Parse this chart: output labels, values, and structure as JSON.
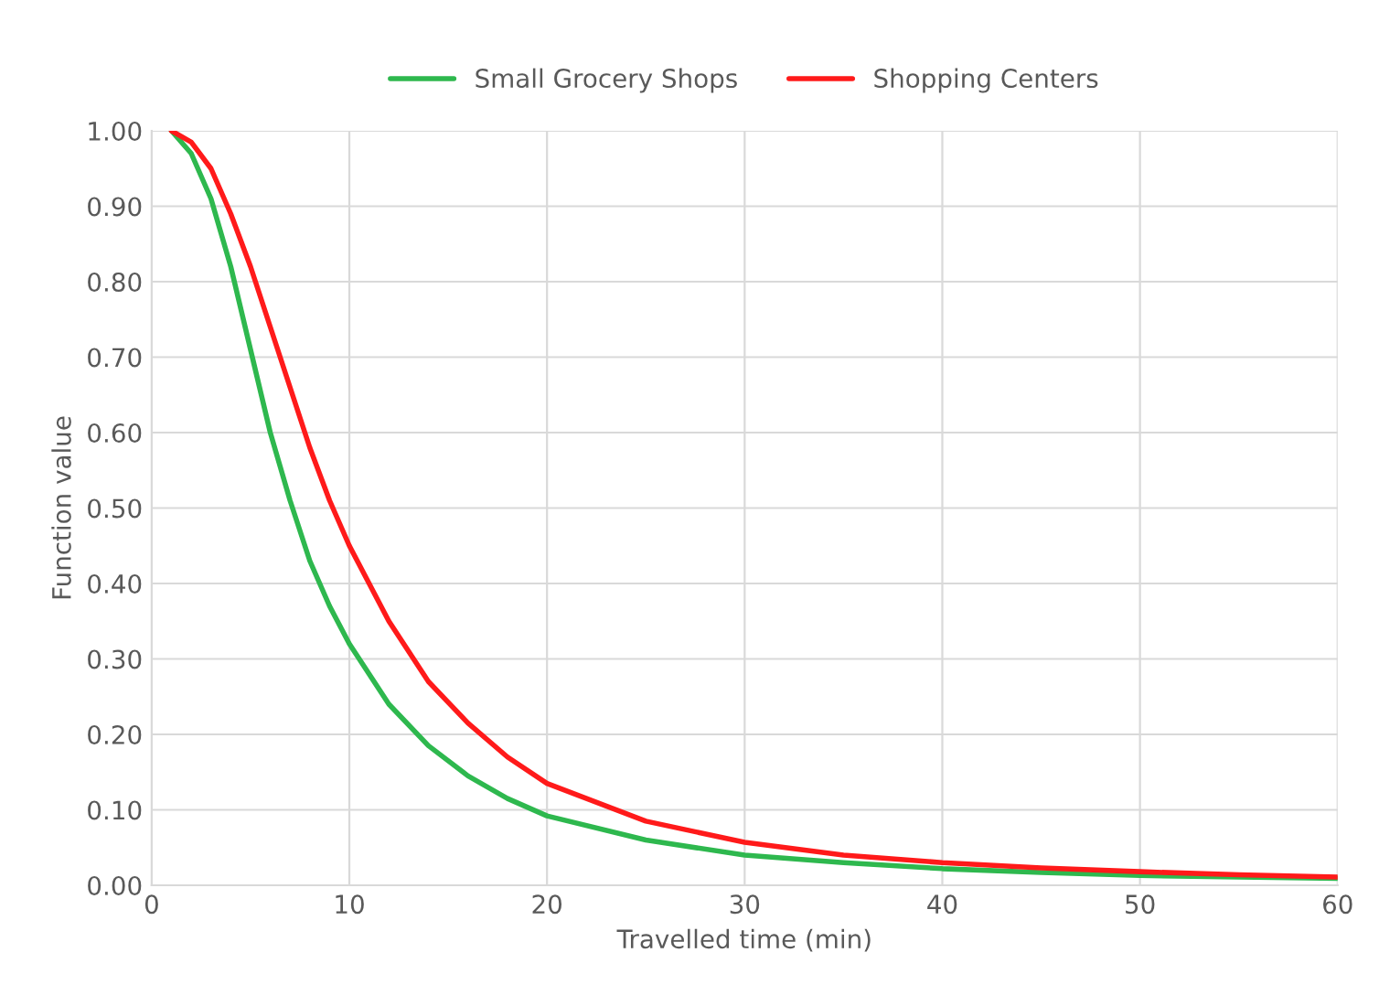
{
  "chart_data": {
    "type": "line",
    "xlabel": "Travelled time (min)",
    "ylabel": "Function value",
    "xlim": [
      0,
      60
    ],
    "xticks": [
      0,
      10,
      20,
      30,
      40,
      50,
      60
    ],
    "ylim": [
      0,
      1
    ],
    "yticks": [
      {
        "value": 0,
        "label": "0.00"
      },
      {
        "value": 0.1,
        "label": "0.10"
      },
      {
        "value": 0.2,
        "label": "0.20"
      },
      {
        "value": 0.3,
        "label": "0.30"
      },
      {
        "value": 0.4,
        "label": "0.40"
      },
      {
        "value": 0.5,
        "label": "0.50"
      },
      {
        "value": 0.6,
        "label": "0.60"
      },
      {
        "value": 0.7,
        "label": "0.70"
      },
      {
        "value": 0.8,
        "label": "0.80"
      },
      {
        "value": 0.9,
        "label": "0.90"
      },
      {
        "value": 1,
        "label": "1.00"
      }
    ],
    "x": [
      1,
      2,
      3,
      4,
      5,
      6,
      7,
      8,
      9,
      10,
      12,
      14,
      16,
      18,
      20,
      25,
      30,
      35,
      40,
      45,
      50,
      55,
      60
    ],
    "series": [
      {
        "name": "Small Grocery Shops",
        "color": "#2eb84e",
        "values": [
          1.0,
          0.97,
          0.91,
          0.82,
          0.71,
          0.6,
          0.51,
          0.43,
          0.37,
          0.32,
          0.24,
          0.185,
          0.145,
          0.115,
          0.092,
          0.06,
          0.04,
          0.03,
          0.022,
          0.017,
          0.013,
          0.011,
          0.009
        ]
      },
      {
        "name": "Shopping Centers",
        "color": "#ff1a1a",
        "values": [
          1.0,
          0.985,
          0.95,
          0.89,
          0.82,
          0.74,
          0.66,
          0.58,
          0.51,
          0.45,
          0.35,
          0.27,
          0.215,
          0.17,
          0.135,
          0.085,
          0.057,
          0.04,
          0.03,
          0.023,
          0.018,
          0.014,
          0.011
        ]
      }
    ],
    "grid": true,
    "legend": "top",
    "marker": "none",
    "line_style": "solid"
  }
}
